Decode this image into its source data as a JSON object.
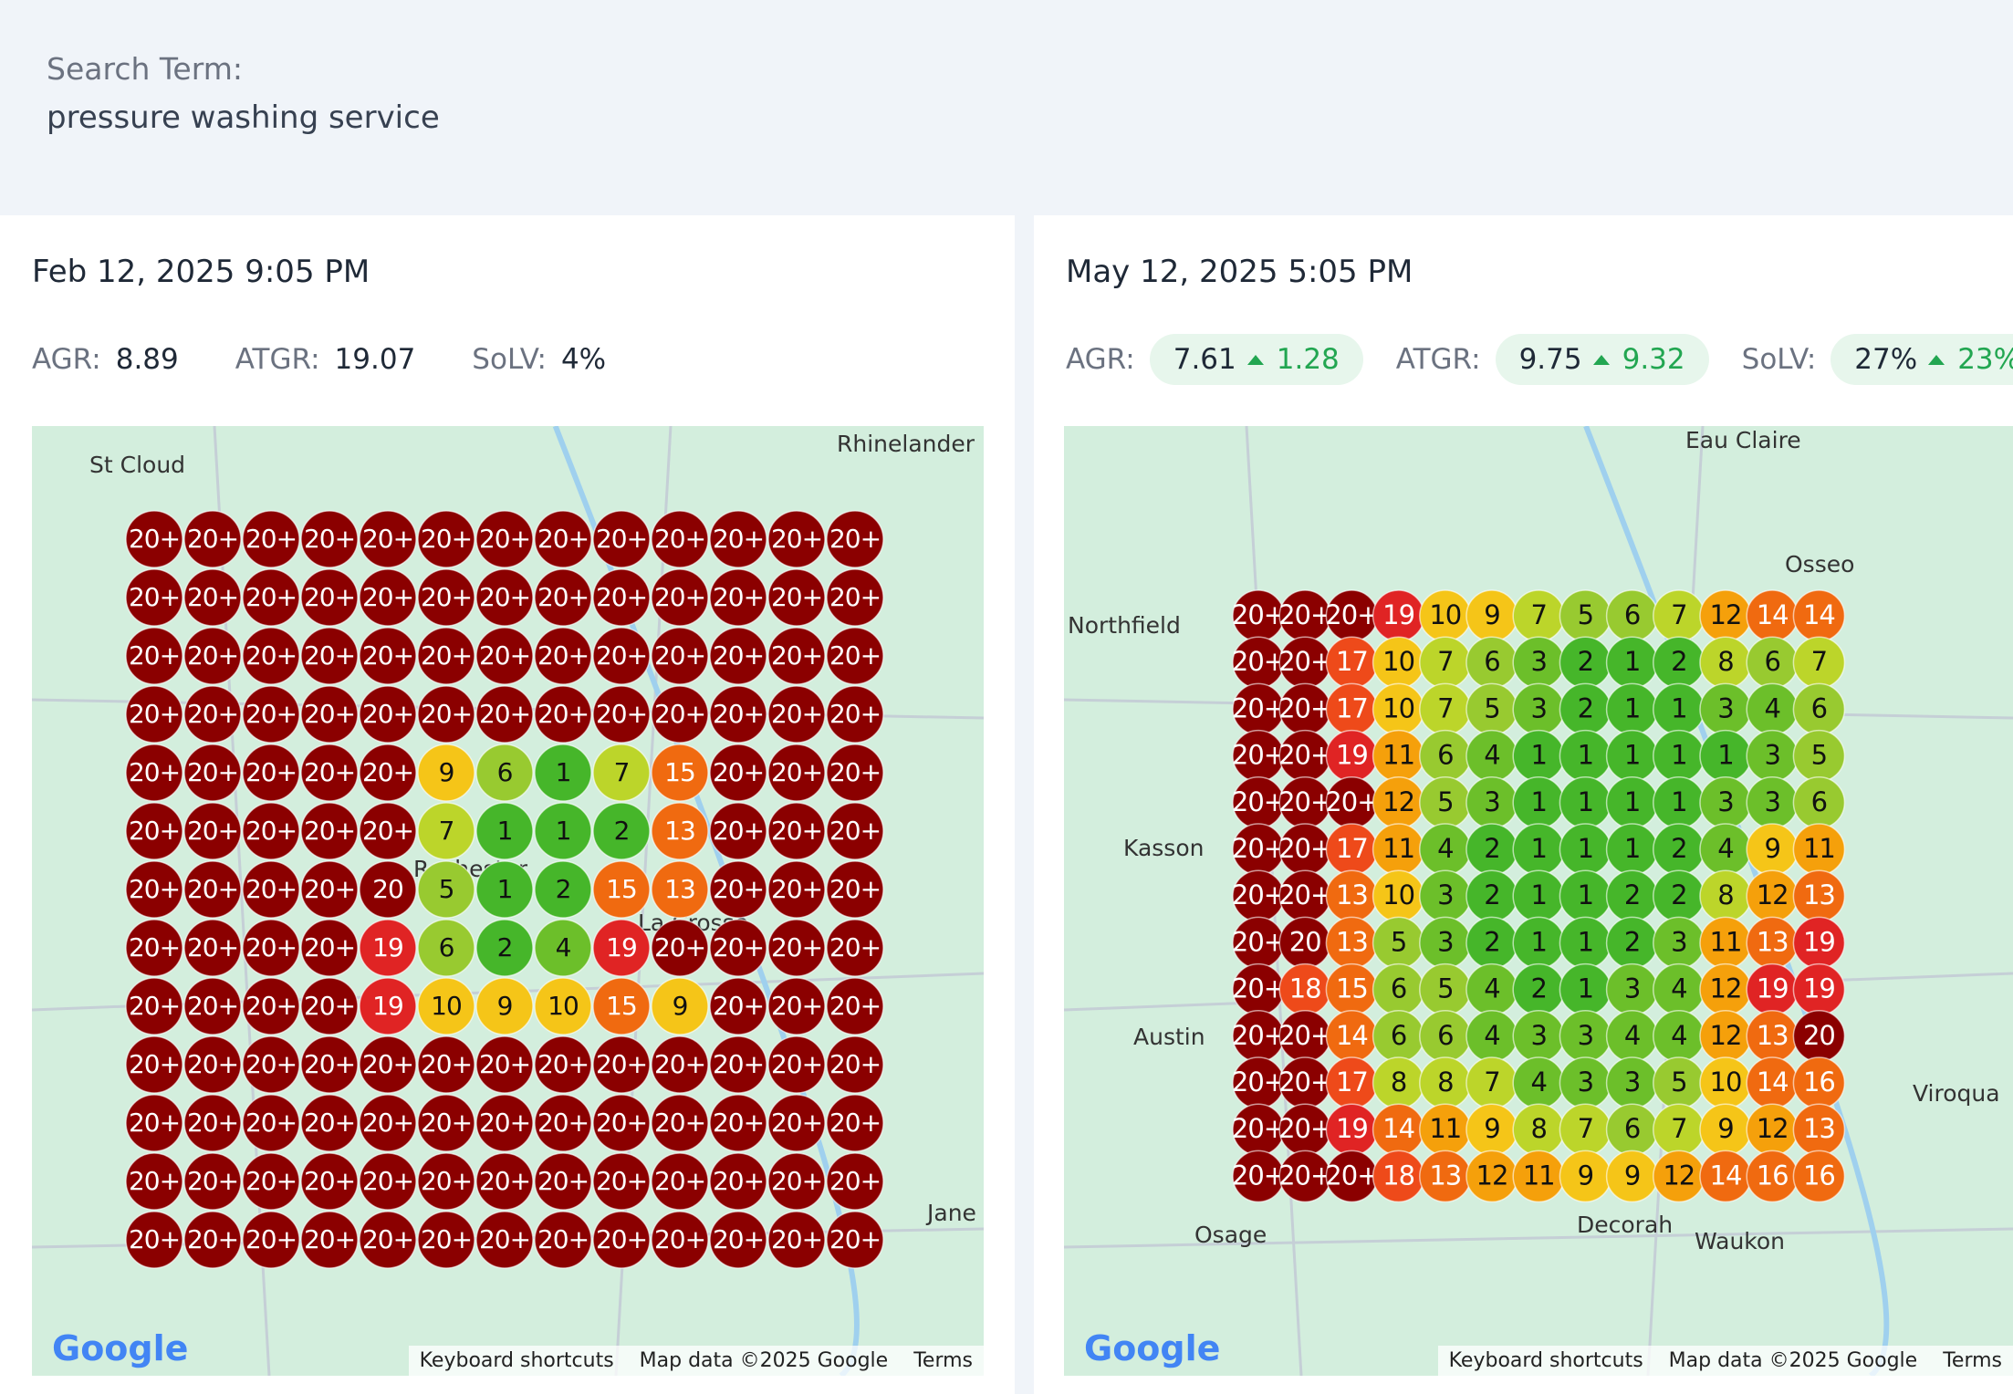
{
  "header": {
    "label": "Search Term:",
    "term": "pressure washing service"
  },
  "panels": [
    {
      "date": "Feb 12, 2025 9:05 PM",
      "metrics": [
        {
          "label": "AGR:",
          "value": 8.89
        },
        {
          "label": "ATGR:",
          "value": 19.07
        },
        {
          "label": "SoLV:",
          "value": "4%"
        }
      ],
      "places": [
        "St Cloud",
        "Rhinelander",
        "Rochester",
        "La Crosse",
        "Jane"
      ],
      "grid": [
        [
          "20+",
          "20+",
          "20+",
          "20+",
          "20+",
          "20+",
          "20+",
          "20+",
          "20+",
          "20+",
          "20+",
          "20+",
          "20+"
        ],
        [
          "20+",
          "20+",
          "20+",
          "20+",
          "20+",
          "20+",
          "20+",
          "20+",
          "20+",
          "20+",
          "20+",
          "20+",
          "20+"
        ],
        [
          "20+",
          "20+",
          "20+",
          "20+",
          "20+",
          "20+",
          "20+",
          "20+",
          "20+",
          "20+",
          "20+",
          "20+",
          "20+"
        ],
        [
          "20+",
          "20+",
          "20+",
          "20+",
          "20+",
          "20+",
          "20+",
          "20+",
          "20+",
          "20+",
          "20+",
          "20+",
          "20+"
        ],
        [
          "20+",
          "20+",
          "20+",
          "20+",
          "20+",
          9,
          6,
          1,
          7,
          15,
          "20+",
          "20+",
          "20+"
        ],
        [
          "20+",
          "20+",
          "20+",
          "20+",
          "20+",
          7,
          1,
          1,
          2,
          13,
          "20+",
          "20+",
          "20+"
        ],
        [
          "20+",
          "20+",
          "20+",
          "20+",
          20,
          5,
          1,
          2,
          15,
          13,
          "20+",
          "20+",
          "20+"
        ],
        [
          "20+",
          "20+",
          "20+",
          "20+",
          19,
          6,
          2,
          4,
          19,
          "20+",
          "20+",
          "20+",
          "20+"
        ],
        [
          "20+",
          "20+",
          "20+",
          "20+",
          19,
          10,
          9,
          10,
          15,
          9,
          "20+",
          "20+",
          "20+"
        ],
        [
          "20+",
          "20+",
          "20+",
          "20+",
          "20+",
          "20+",
          "20+",
          "20+",
          "20+",
          "20+",
          "20+",
          "20+",
          "20+"
        ],
        [
          "20+",
          "20+",
          "20+",
          "20+",
          "20+",
          "20+",
          "20+",
          "20+",
          "20+",
          "20+",
          "20+",
          "20+",
          "20+"
        ],
        [
          "20+",
          "20+",
          "20+",
          "20+",
          "20+",
          "20+",
          "20+",
          "20+",
          "20+",
          "20+",
          "20+",
          "20+",
          "20+"
        ],
        [
          "20+",
          "20+",
          "20+",
          "20+",
          "20+",
          "20+",
          "20+",
          "20+",
          "20+",
          "20+",
          "20+",
          "20+",
          "20+"
        ]
      ]
    },
    {
      "date": "May 12, 2025 5:05 PM",
      "metrics": [
        {
          "label": "AGR:",
          "value": 7.61,
          "change": 1.28
        },
        {
          "label": "ATGR:",
          "value": 9.75,
          "change": 9.32
        },
        {
          "label": "SoLV:",
          "value": "27%",
          "change": "23%"
        }
      ],
      "places": [
        "Eau Claire",
        "Osseo",
        "Northfield",
        "Kasson",
        "Austin",
        "Decorah",
        "Waukon",
        "Viroqua",
        "Osage"
      ],
      "grid": [
        [
          "20+",
          "20+",
          "20+",
          19,
          10,
          9,
          7,
          5,
          6,
          7,
          12,
          14,
          14
        ],
        [
          "20+",
          "20+",
          17,
          10,
          7,
          6,
          3,
          2,
          1,
          2,
          8,
          6,
          7
        ],
        [
          "20+",
          "20+",
          17,
          10,
          7,
          5,
          3,
          2,
          1,
          1,
          3,
          4,
          6
        ],
        [
          "20+",
          "20+",
          19,
          11,
          6,
          4,
          1,
          1,
          1,
          1,
          1,
          3,
          5
        ],
        [
          "20+",
          "20+",
          "20+",
          12,
          5,
          3,
          1,
          1,
          1,
          1,
          3,
          3,
          6
        ],
        [
          "20+",
          "20+",
          17,
          11,
          4,
          2,
          1,
          1,
          1,
          2,
          4,
          9,
          11
        ],
        [
          "20+",
          "20+",
          13,
          10,
          3,
          2,
          1,
          1,
          2,
          2,
          8,
          12,
          13
        ],
        [
          "20+",
          20,
          13,
          5,
          3,
          2,
          1,
          1,
          2,
          3,
          11,
          13,
          19
        ],
        [
          "20+",
          18,
          15,
          6,
          5,
          4,
          2,
          1,
          3,
          4,
          12,
          19,
          19
        ],
        [
          "20+",
          "20+",
          14,
          6,
          6,
          4,
          3,
          3,
          4,
          4,
          12,
          13,
          20
        ],
        [
          "20+",
          "20+",
          17,
          8,
          8,
          7,
          4,
          3,
          3,
          5,
          10,
          14,
          16
        ],
        [
          "20+",
          "20+",
          19,
          14,
          11,
          9,
          8,
          7,
          6,
          7,
          9,
          12,
          13
        ],
        [
          "20+",
          "20+",
          "20+",
          18,
          13,
          12,
          11,
          9,
          9,
          12,
          14,
          16,
          16
        ]
      ]
    }
  ],
  "map_footer": {
    "logo": "Google",
    "shortcuts": "Keyboard shortcuts",
    "data": "Map data ©2025 Google",
    "terms": "Terms"
  }
}
